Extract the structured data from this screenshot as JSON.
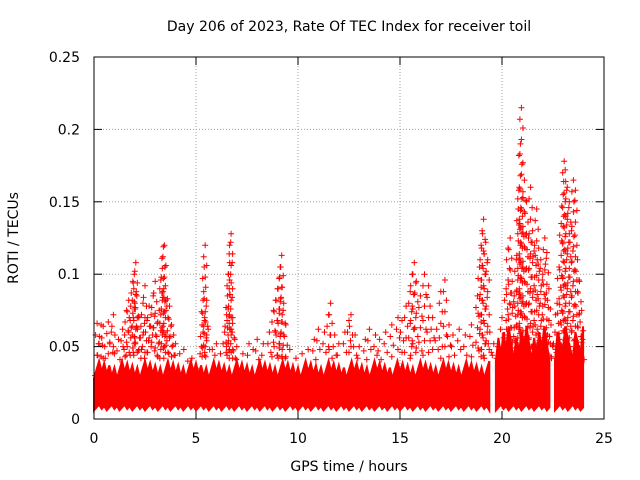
{
  "chart_data": {
    "type": "scatter",
    "title": "Day 206 of 2023, Rate Of TEC Index for receiver toil",
    "xlabel": "GPS time / hours",
    "ylabel": "ROTI / TECUs",
    "xlim": [
      0,
      25
    ],
    "ylim": [
      0,
      0.25
    ],
    "xticks": [
      0,
      5,
      10,
      15,
      20,
      25
    ],
    "xtick_labels": [
      "0",
      "5",
      "10",
      "15",
      "20",
      "25"
    ],
    "yticks": [
      0,
      0.05,
      0.1,
      0.15,
      0.2,
      0.25
    ],
    "ytick_labels": [
      "0",
      "0.05",
      "0.1",
      "0.15",
      "0.2",
      "0.25"
    ],
    "grid": true,
    "marker": "+",
    "color": "#ff0000",
    "series": [
      {
        "name": "",
        "points": [
          [
            0.05,
            0.03
          ],
          [
            0.15,
            0.066
          ],
          [
            0.25,
            0.052
          ],
          [
            0.35,
            0.065
          ],
          [
            0.45,
            0.064
          ],
          [
            0.55,
            0.042
          ],
          [
            0.7,
            0.067
          ],
          [
            0.85,
            0.06
          ],
          [
            0.95,
            0.072
          ],
          [
            1.0,
            0.045
          ],
          [
            1.2,
            0.055
          ],
          [
            1.4,
            0.062
          ],
          [
            1.5,
            0.058
          ],
          [
            1.6,
            0.075
          ],
          [
            1.7,
            0.082
          ],
          [
            1.8,
            0.078
          ],
          [
            1.9,
            0.095
          ],
          [
            1.95,
            0.09
          ],
          [
            2.0,
            0.102
          ],
          [
            2.05,
            0.108
          ],
          [
            2.1,
            0.085
          ],
          [
            2.2,
            0.07
          ],
          [
            2.3,
            0.064
          ],
          [
            2.4,
            0.08
          ],
          [
            2.5,
            0.092
          ],
          [
            2.6,
            0.068
          ],
          [
            2.7,
            0.078
          ],
          [
            2.8,
            0.072
          ],
          [
            2.9,
            0.085
          ],
          [
            3.0,
            0.095
          ],
          [
            3.1,
            0.066
          ],
          [
            3.2,
            0.075
          ],
          [
            3.3,
            0.098
          ],
          [
            3.35,
            0.104
          ],
          [
            3.4,
            0.119
          ],
          [
            3.45,
            0.12
          ],
          [
            3.5,
            0.092
          ],
          [
            3.6,
            0.083
          ],
          [
            3.7,
            0.078
          ],
          [
            3.8,
            0.065
          ],
          [
            3.9,
            0.058
          ],
          [
            4.0,
            0.052
          ],
          [
            4.2,
            0.045
          ],
          [
            4.4,
            0.048
          ],
          [
            4.6,
            0.04
          ],
          [
            4.8,
            0.042
          ],
          [
            5.0,
            0.035
          ],
          [
            5.2,
            0.045
          ],
          [
            5.3,
            0.065
          ],
          [
            5.35,
            0.082
          ],
          [
            5.4,
            0.105
          ],
          [
            5.45,
            0.12
          ],
          [
            5.5,
            0.078
          ],
          [
            5.6,
            0.062
          ],
          [
            5.8,
            0.048
          ],
          [
            6.0,
            0.052
          ],
          [
            6.2,
            0.045
          ],
          [
            6.4,
            0.06
          ],
          [
            6.5,
            0.072
          ],
          [
            6.55,
            0.085
          ],
          [
            6.6,
            0.1
          ],
          [
            6.65,
            0.108
          ],
          [
            6.7,
            0.122
          ],
          [
            6.72,
            0.128
          ],
          [
            6.8,
            0.07
          ],
          [
            6.9,
            0.055
          ],
          [
            7.0,
            0.05
          ],
          [
            7.3,
            0.045
          ],
          [
            7.6,
            0.052
          ],
          [
            7.8,
            0.048
          ],
          [
            8.0,
            0.055
          ],
          [
            8.3,
            0.052
          ],
          [
            8.6,
            0.06
          ],
          [
            8.8,
            0.075
          ],
          [
            8.9,
            0.082
          ],
          [
            9.0,
            0.09
          ],
          [
            9.1,
            0.098
          ],
          [
            9.15,
            0.105
          ],
          [
            9.2,
            0.113
          ],
          [
            9.3,
            0.08
          ],
          [
            9.4,
            0.065
          ],
          [
            9.6,
            0.048
          ],
          [
            9.9,
            0.042
          ],
          [
            10.2,
            0.045
          ],
          [
            10.5,
            0.048
          ],
          [
            10.8,
            0.055
          ],
          [
            11.0,
            0.062
          ],
          [
            11.3,
            0.06
          ],
          [
            11.5,
            0.072
          ],
          [
            11.6,
            0.08
          ],
          [
            11.8,
            0.058
          ],
          [
            12.0,
            0.052
          ],
          [
            12.3,
            0.06
          ],
          [
            12.5,
            0.068
          ],
          [
            12.6,
            0.072
          ],
          [
            12.8,
            0.058
          ],
          [
            13.0,
            0.05
          ],
          [
            13.3,
            0.055
          ],
          [
            13.5,
            0.062
          ],
          [
            13.8,
            0.058
          ],
          [
            14.0,
            0.055
          ],
          [
            14.3,
            0.06
          ],
          [
            14.6,
            0.065
          ],
          [
            14.9,
            0.07
          ],
          [
            15.1,
            0.068
          ],
          [
            15.3,
            0.078
          ],
          [
            15.5,
            0.088
          ],
          [
            15.6,
            0.1
          ],
          [
            15.7,
            0.108
          ],
          [
            15.8,
            0.095
          ],
          [
            16.0,
            0.085
          ],
          [
            16.2,
            0.1
          ],
          [
            16.4,
            0.092
          ],
          [
            16.6,
            0.07
          ],
          [
            16.8,
            0.062
          ],
          [
            17.0,
            0.088
          ],
          [
            17.2,
            0.096
          ],
          [
            17.4,
            0.065
          ],
          [
            17.6,
            0.058
          ],
          [
            17.9,
            0.062
          ],
          [
            18.2,
            0.058
          ],
          [
            18.5,
            0.065
          ],
          [
            18.8,
            0.085
          ],
          [
            18.9,
            0.105
          ],
          [
            19.0,
            0.118
          ],
          [
            19.05,
            0.128
          ],
          [
            19.1,
            0.138
          ],
          [
            19.2,
            0.122
          ],
          [
            19.3,
            0.11
          ],
          [
            19.4,
            0.06
          ],
          [
            19.6,
            0.052
          ],
          [
            19.8,
            0.05
          ],
          [
            20.0,
            0.07
          ],
          [
            20.2,
            0.09
          ],
          [
            20.3,
            0.118
          ],
          [
            20.4,
            0.125
          ],
          [
            20.5,
            0.095
          ],
          [
            20.6,
            0.085
          ],
          [
            20.7,
            0.11
          ],
          [
            20.8,
            0.145
          ],
          [
            20.85,
            0.16
          ],
          [
            20.9,
            0.19
          ],
          [
            20.95,
            0.215
          ],
          [
            21.0,
            0.14
          ],
          [
            21.1,
            0.165
          ],
          [
            21.2,
            0.15
          ],
          [
            21.3,
            0.125
          ],
          [
            21.4,
            0.16
          ],
          [
            21.5,
            0.13
          ],
          [
            21.6,
            0.12
          ],
          [
            21.7,
            0.145
          ],
          [
            21.8,
            0.118
          ],
          [
            21.9,
            0.11
          ],
          [
            22.0,
            0.1
          ],
          [
            22.1,
            0.125
          ],
          [
            22.2,
            0.115
          ],
          [
            22.3,
            0.09
          ],
          [
            22.4,
            0.065
          ],
          [
            22.5,
            0.05
          ],
          [
            22.6,
            0.06
          ],
          [
            22.7,
            0.08
          ],
          [
            22.8,
            0.105
          ],
          [
            22.9,
            0.135
          ],
          [
            23.0,
            0.155
          ],
          [
            23.05,
            0.178
          ],
          [
            23.1,
            0.172
          ],
          [
            23.2,
            0.16
          ],
          [
            23.3,
            0.15
          ],
          [
            23.4,
            0.13
          ],
          [
            23.5,
            0.165
          ],
          [
            23.6,
            0.158
          ],
          [
            23.7,
            0.11
          ],
          [
            23.8,
            0.095
          ],
          [
            23.9,
            0.075
          ],
          [
            23.95,
            0.055
          ]
        ]
      }
    ]
  }
}
